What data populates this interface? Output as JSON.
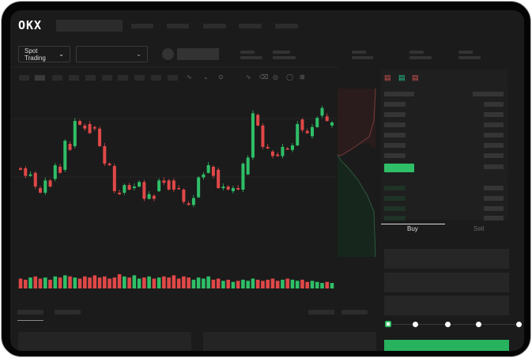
{
  "header": {
    "logo": "OKX"
  },
  "controls": {
    "market_type": "Spot Trading",
    "chevron": "chevron-down-icon"
  },
  "trade": {
    "buy_tab": "Buy",
    "sell_tab": "Sell",
    "slider_level_percent": 0
  },
  "colors": {
    "up": "#2fbf68",
    "down": "#e04848",
    "buy_button": "#27b25e"
  },
  "chart_data": {
    "type": "candlestick",
    "candles": [
      [
        96,
        94
      ],
      [
        96,
        86
      ],
      [
        86,
        88
      ],
      [
        90,
        72
      ],
      [
        70,
        64
      ],
      [
        64,
        80
      ],
      [
        80,
        72
      ],
      [
        82,
        100
      ],
      [
        98,
        90
      ],
      [
        94,
        132
      ],
      [
        128,
        120
      ],
      [
        125,
        158
      ],
      [
        158,
        153
      ],
      [
        152,
        148
      ],
      [
        154,
        142
      ],
      [
        150,
        148
      ],
      [
        148,
        125
      ],
      [
        125,
        102
      ],
      [
        102,
        100
      ],
      [
        99,
        66
      ],
      [
        64,
        62
      ],
      [
        64,
        74
      ],
      [
        74,
        68
      ],
      [
        70,
        72
      ],
      [
        72,
        78
      ],
      [
        78,
        56
      ],
      [
        56,
        62
      ],
      [
        60,
        56
      ],
      [
        66,
        80
      ],
      [
        80,
        77
      ],
      [
        80,
        68
      ],
      [
        80,
        68
      ],
      [
        70,
        69
      ],
      [
        68,
        52
      ],
      [
        50,
        48
      ],
      [
        48,
        57
      ],
      [
        58,
        84
      ],
      [
        84,
        88
      ],
      [
        90,
        100
      ],
      [
        98,
        86
      ],
      [
        94,
        70
      ],
      [
        70,
        72
      ],
      [
        72,
        68
      ],
      [
        66,
        70
      ],
      [
        70,
        68
      ],
      [
        68,
        102
      ],
      [
        88,
        110
      ],
      [
        110,
        168
      ],
      [
        166,
        152
      ],
      [
        152,
        124
      ],
      [
        124,
        122
      ],
      [
        118,
        112
      ],
      [
        114,
        112
      ],
      [
        112,
        124
      ],
      [
        122,
        121
      ],
      [
        120,
        126
      ],
      [
        126,
        154
      ],
      [
        160,
        146
      ],
      [
        145,
        142
      ],
      [
        138,
        150
      ],
      [
        150,
        162
      ],
      [
        165,
        175
      ],
      [
        164,
        158
      ],
      [
        152,
        156
      ]
    ],
    "volume": [
      9,
      8,
      10,
      11,
      9,
      10,
      8,
      11,
      10,
      12,
      11,
      10,
      9,
      11,
      10,
      12,
      10,
      11,
      9,
      10,
      13,
      11,
      10,
      12,
      9,
      10,
      11,
      9,
      10,
      11,
      10,
      12,
      9,
      11,
      10,
      8,
      10,
      9,
      11,
      8,
      9,
      7,
      8,
      6,
      7,
      8,
      7,
      9,
      8,
      7,
      8,
      9,
      7,
      8,
      9,
      8,
      7,
      8,
      6,
      7,
      6,
      5,
      6,
      5
    ]
  }
}
